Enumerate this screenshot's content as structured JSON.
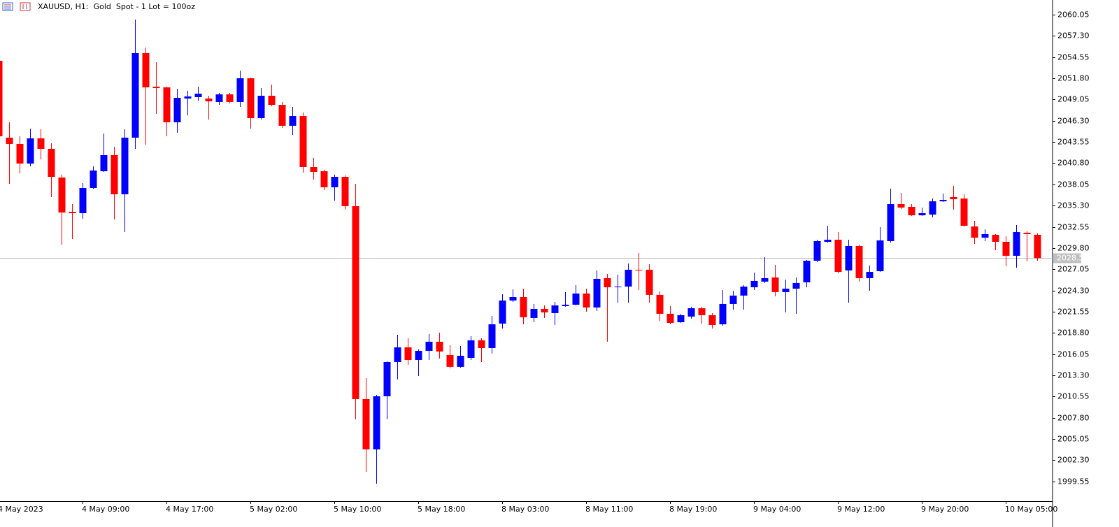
{
  "chart_data": {
    "type": "candlestick",
    "title": "XAUUSD, H1:  Gold  Spot - 1 Lot = 100oz",
    "up_color": "#0000ff",
    "down_color": "#ff0000",
    "categories": [
      "4 May 2023",
      null,
      null,
      null,
      null,
      null,
      null,
      null,
      "4 May 09:00",
      null,
      null,
      null,
      null,
      null,
      null,
      null,
      "4 May 17:00",
      null,
      null,
      null,
      null,
      null,
      null,
      null,
      "5 May 02:00",
      null,
      null,
      null,
      null,
      null,
      null,
      null,
      "5 May 10:00",
      null,
      null,
      null,
      null,
      null,
      null,
      null,
      "5 May 18:00",
      null,
      null,
      null,
      null,
      null,
      null,
      null,
      "8 May 03:00",
      null,
      null,
      null,
      null,
      null,
      null,
      null,
      "8 May 11:00",
      null,
      null,
      null,
      null,
      null,
      null,
      null,
      "8 May 19:00",
      null,
      null,
      null,
      null,
      null,
      null,
      null,
      "9 May 04:00",
      null,
      null,
      null,
      null,
      null,
      null,
      null,
      "9 May 12:00",
      null,
      null,
      null,
      null,
      null,
      null,
      null,
      "9 May 20:00",
      null,
      null,
      null,
      null,
      null,
      null,
      null,
      "10 May 05:00",
      null,
      null,
      null
    ],
    "open": [
      2054.07,
      2044.11,
      2043.29,
      2040.75,
      2044.02,
      2042.66,
      2038.94,
      2034.5,
      2034.32,
      2037.58,
      2039.76,
      2041.84,
      2036.77,
      2044.11,
      2055.07,
      2050.72,
      2050.63,
      2046.1,
      2049.18,
      2049.36,
      2049.18,
      2048.73,
      2049.72,
      2048.73,
      2051.81,
      2046.64,
      2049.54,
      2048.36,
      2045.65,
      2046.91,
      2040.3,
      2039.76,
      2037.68,
      2039.03,
      2035.23,
      2010.23,
      2003.71,
      2010.59,
      2015.03,
      2016.93,
      2015.3,
      2016.48,
      2017.66,
      2015.94,
      2014.4,
      2015.57,
      2017.84,
      2016.84,
      2020.01,
      2023.0,
      2023.45,
      2020.74,
      2021.91,
      2021.37,
      2022.28,
      2022.46,
      2023.91,
      2022.1,
      2025.9,
      2024.72,
      2024.81,
      2026.99,
      2026.99,
      2023.73,
      2021.28,
      2020.19,
      2020.92,
      2022.0,
      2021.1,
      2019.92,
      2022.55,
      2023.64,
      2024.72,
      2025.45,
      2025.99,
      2024.09,
      2024.54,
      2025.36,
      2028.16,
      2030.61,
      2030.88,
      2026.9,
      2030.07,
      2025.9,
      2026.8,
      2030.7,
      2035.5,
      2035.14,
      2034.05,
      2034.14,
      2035.86,
      2036.41,
      2036.22,
      2032.6,
      2031.15,
      2031.52,
      2030.61,
      2028.8,
      2031.79,
      2031.52
    ],
    "high": [
      2054.25,
      2046.1,
      2044.29,
      2045.28,
      2045.19,
      2043.38,
      2039.31,
      2035.5,
      2038.22,
      2040.39,
      2044.65,
      2042.93,
      2045.19,
      2059.41,
      2055.79,
      2053.89,
      2050.72,
      2050.45,
      2050.18,
      2050.72,
      2049.54,
      2049.9,
      2049.9,
      2052.8,
      2051.9,
      2050.54,
      2050.99,
      2048.73,
      2048.09,
      2047.37,
      2041.48,
      2039.94,
      2039.31,
      2039.22,
      2038.13,
      2012.95,
      2010.77,
      2015.12,
      2018.56,
      2018.11,
      2016.66,
      2018.65,
      2018.83,
      2017.2,
      2017.11,
      2018.38,
      2018.11,
      2021.01,
      2023.81,
      2024.45,
      2024.54,
      2022.55,
      2022.37,
      2022.82,
      2024.09,
      2024.99,
      2024.54,
      2026.9,
      2026.44,
      2026.35,
      2027.8,
      2029.16,
      2027.71,
      2024.18,
      2022.28,
      2021.28,
      2022.19,
      2022.19,
      2021.37,
      2024.36,
      2024.27,
      2024.99,
      2026.62,
      2028.62,
      2027.62,
      2025.72,
      2025.99,
      2028.26,
      2030.88,
      2032.69,
      2031.88,
      2030.88,
      2030.25,
      2027.53,
      2032.51,
      2037.49,
      2036.95,
      2035.5,
      2035.05,
      2036.23,
      2036.86,
      2037.86,
      2036.77,
      2033.33,
      2032.24,
      2031.61,
      2031.33,
      2032.78,
      2031.97,
      2031.7
    ],
    "low": [
      2043.83,
      2038.13,
      2039.49,
      2040.39,
      2041.3,
      2036.41,
      2030.25,
      2030.97,
      2033.6,
      2037.49,
      2039.67,
      2033.51,
      2031.88,
      2042.66,
      2043.2,
      2047.19,
      2044.29,
      2044.74,
      2047.0,
      2048.91,
      2046.46,
      2048.36,
      2048.54,
      2048.09,
      2045.28,
      2046.46,
      2048.18,
      2045.37,
      2044.47,
      2039.58,
      2038.67,
      2037.31,
      2035.95,
      2034.78,
      2007.6,
      2000.81,
      1999.27,
      2007.6,
      2012.77,
      2014.67,
      2013.22,
      2015.3,
      2015.48,
      2014.21,
      2014.3,
      2015.3,
      2015.03,
      2016.12,
      2019.38,
      2022.82,
      2019.92,
      2020.19,
      2020.74,
      2019.83,
      2022.19,
      2022.37,
      2021.55,
      2021.64,
      2017.66,
      2022.73,
      2022.73,
      2024.36,
      2022.73,
      2020.37,
      2019.92,
      2020.1,
      2020.65,
      2020.01,
      2019.38,
      2019.74,
      2021.82,
      2021.82,
      2024.36,
      2025.27,
      2023.54,
      2021.46,
      2021.28,
      2024.72,
      2027.98,
      2030.52,
      2026.53,
      2022.73,
      2025.45,
      2024.27,
      2026.71,
      2030.52,
      2034.87,
      2033.96,
      2033.96,
      2033.78,
      2035.77,
      2034.78,
      2032.6,
      2030.34,
      2030.7,
      2029.52,
      2027.44,
      2027.26,
      2028.07,
      2028.16
    ],
    "close": [
      2044.29,
      2043.29,
      2040.75,
      2044.02,
      2042.66,
      2039.03,
      2034.41,
      2034.32,
      2037.58,
      2039.85,
      2041.84,
      2036.77,
      2044.11,
      2055.07,
      2050.63,
      2050.54,
      2046.1,
      2049.27,
      2049.45,
      2049.81,
      2048.82,
      2049.72,
      2048.73,
      2051.81,
      2046.64,
      2049.54,
      2048.36,
      2045.65,
      2046.91,
      2040.3,
      2039.67,
      2037.68,
      2039.03,
      2035.23,
      2010.23,
      2003.71,
      2010.59,
      2015.03,
      2016.93,
      2015.3,
      2016.48,
      2017.66,
      2016.39,
      2014.4,
      2015.84,
      2017.84,
      2016.84,
      2019.92,
      2023.0,
      2023.45,
      2020.83,
      2021.91,
      2021.46,
      2022.37,
      2022.46,
      2023.91,
      2022.1,
      2025.81,
      2024.72,
      2024.81,
      2026.99,
      2026.9,
      2023.73,
      2021.28,
      2020.1,
      2021.1,
      2022.0,
      2021.1,
      2019.83,
      2022.55,
      2023.64,
      2024.81,
      2025.54,
      2025.9,
      2024.09,
      2024.54,
      2025.27,
      2028.16,
      2030.7,
      2030.88,
      2026.71,
      2030.07,
      2025.9,
      2026.71,
      2030.79,
      2035.5,
      2035.05,
      2034.05,
      2034.32,
      2035.86,
      2036.04,
      2036.13,
      2032.69,
      2031.15,
      2031.61,
      2030.61,
      2028.8,
      2031.88,
      2031.61,
      2028.5
    ],
    "ylim": [
      1997.0,
      2061.95
    ],
    "yticks": [
      2060.05,
      {
        "value": 2057.3,
        "label": "2057.30"
      },
      2054.55,
      {
        "value": 2051.8,
        "label": "2051.80"
      },
      2049.05,
      {
        "value": 2046.3,
        "label": "2046.30"
      },
      2043.55,
      {
        "value": 2040.8,
        "label": "2040.80"
      },
      2038.05,
      {
        "value": 2035.3,
        "label": "2035.30"
      },
      2032.55,
      {
        "value": 2029.8,
        "label": "2029.80"
      },
      2027.05,
      {
        "value": 2024.3,
        "label": "2024.30"
      },
      2021.55,
      {
        "value": 2018.8,
        "label": "2018.80"
      },
      2016.05,
      {
        "value": 2013.3,
        "label": "2013.30"
      },
      2010.55,
      {
        "value": 2007.8,
        "label": "2007.80"
      },
      2005.05,
      {
        "value": 2002.3,
        "label": "2002.30"
      },
      1999.55
    ],
    "current_price": {
      "value": 2028.5,
      "label": "2028.50"
    },
    "current_price_color": "#c0c0c0"
  }
}
